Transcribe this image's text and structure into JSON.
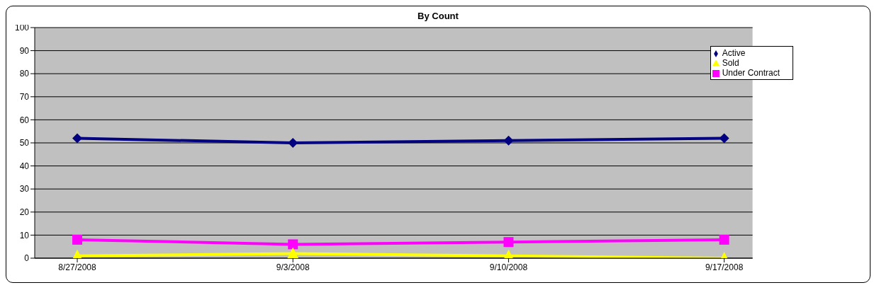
{
  "chart_data": {
    "type": "line",
    "title": "By Count",
    "categories": [
      "8/27/2008",
      "9/3/2008",
      "9/10/2008",
      "9/17/2008"
    ],
    "series": [
      {
        "name": "Active",
        "color": "#000080",
        "marker": "diamond",
        "values": [
          52,
          50,
          51,
          52
        ]
      },
      {
        "name": "Under Contract",
        "color": "#ff00ff",
        "marker": "square",
        "values": [
          8,
          6,
          7,
          8
        ]
      },
      {
        "name": "Sold",
        "color": "#ffff00",
        "marker": "triangle",
        "values": [
          1,
          2,
          1,
          0
        ]
      }
    ],
    "ylim": [
      0,
      100
    ],
    "yticks": [
      0,
      10,
      20,
      30,
      40,
      50,
      60,
      70,
      80,
      90,
      100
    ],
    "grid": "y",
    "legend": "top right"
  }
}
